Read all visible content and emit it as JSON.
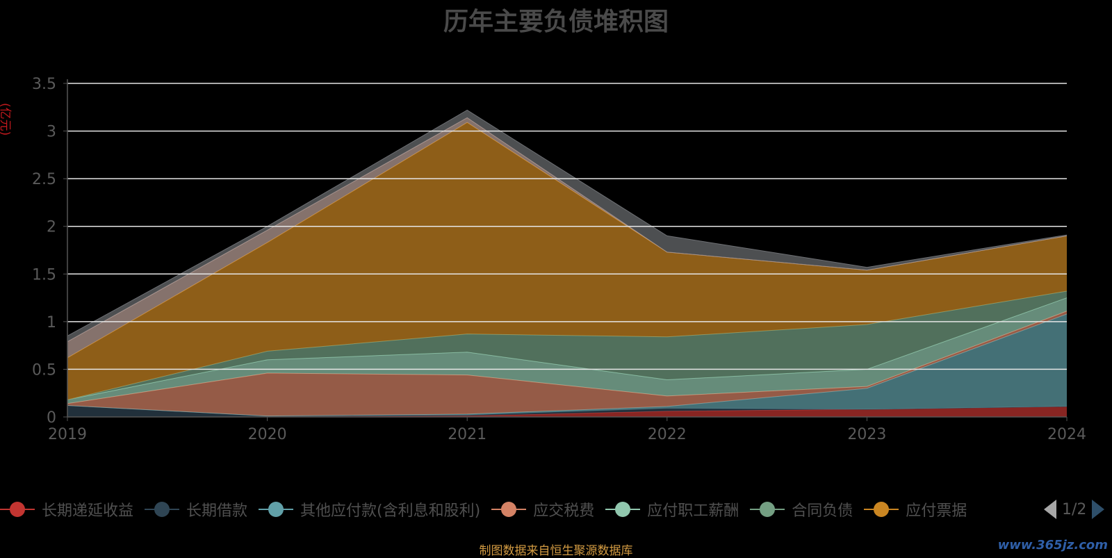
{
  "chart_data": {
    "type": "area",
    "stacked": true,
    "title": "历年主要负债堆积图",
    "unit_label": "(亿元)",
    "x": [
      "2019",
      "2020",
      "2021",
      "2022",
      "2023",
      "2024"
    ],
    "ylim": [
      0,
      3.5
    ],
    "yticks": [
      "0",
      "0.5",
      "1",
      "1.5",
      "2",
      "2.5",
      "3",
      "3.5"
    ],
    "grid": true,
    "series": [
      {
        "name": "长期递延收益",
        "color": "#c23531",
        "values": [
          0,
          0,
          0.01,
          0.06,
          0.08,
          0.11
        ]
      },
      {
        "name": "长期借款",
        "color": "#2f4554",
        "values": [
          0.12,
          0.01,
          0.01,
          0.03,
          0,
          0
        ]
      },
      {
        "name": "其他应付款(含利息和股利)",
        "color": "#61a0a8",
        "values": [
          0,
          0,
          0.01,
          0.02,
          0.22,
          0.97
        ]
      },
      {
        "name": "应交税费",
        "color": "#d48265",
        "values": [
          0.02,
          0.45,
          0.41,
          0.11,
          0.02,
          0.03
        ]
      },
      {
        "name": "应付职工薪酬",
        "color": "#91c7ae",
        "values": [
          0.04,
          0.14,
          0.24,
          0.17,
          0.18,
          0.14
        ]
      },
      {
        "name": "合同负债",
        "color": "#749f83",
        "values": [
          0,
          0.09,
          0.19,
          0.45,
          0.47,
          0.07
        ]
      },
      {
        "name": "应付票据",
        "color": "#ca8622",
        "values": [
          0.44,
          1.14,
          2.22,
          0.89,
          0.57,
          0.58
        ]
      },
      {
        "name": "",
        "color": "#bda29a",
        "values": [
          0.17,
          0.13,
          0.05,
          0,
          0,
          0
        ]
      },
      {
        "name": "",
        "color": "#6e7074",
        "values": [
          0.06,
          0.04,
          0.08,
          0.17,
          0.03,
          0.01
        ]
      }
    ],
    "legend": {
      "visible_labels": [
        "长期递延收益",
        "长期借款",
        "其他应付款(含利息和股利)",
        "应交税费",
        "应付职工薪酬",
        "合同负债",
        "应付票据"
      ],
      "placement": "bottom",
      "page": "1/2"
    }
  },
  "footer": {
    "source": "制图数据来自恒生聚源数据库",
    "watermark": "www.365jz.com"
  }
}
